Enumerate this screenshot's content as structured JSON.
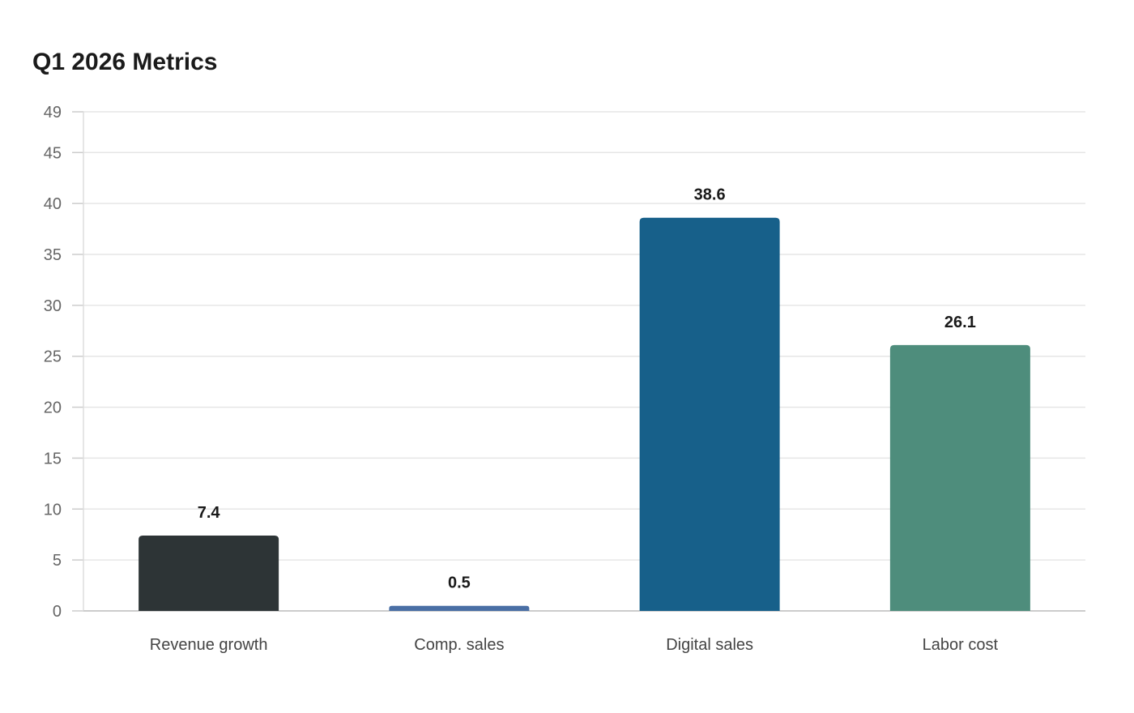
{
  "chart_data": {
    "type": "bar",
    "title": "Q1 2026 Metrics",
    "xlabel": "",
    "ylabel": "",
    "categories": [
      "Revenue growth",
      "Comp. sales",
      "Digital sales",
      "Labor cost"
    ],
    "values": [
      7.4,
      0.5,
      38.6,
      26.1
    ],
    "value_labels": [
      "7.4",
      "0.5",
      "38.6",
      "26.1"
    ],
    "colors": [
      "#2d3436",
      "#4a6fa5",
      "#17608a",
      "#4e8d7c"
    ],
    "ylim": [
      0,
      49
    ],
    "yticks": [
      0,
      5,
      10,
      15,
      20,
      25,
      30,
      35,
      40,
      45,
      49
    ],
    "grid": true,
    "legend": "none"
  }
}
